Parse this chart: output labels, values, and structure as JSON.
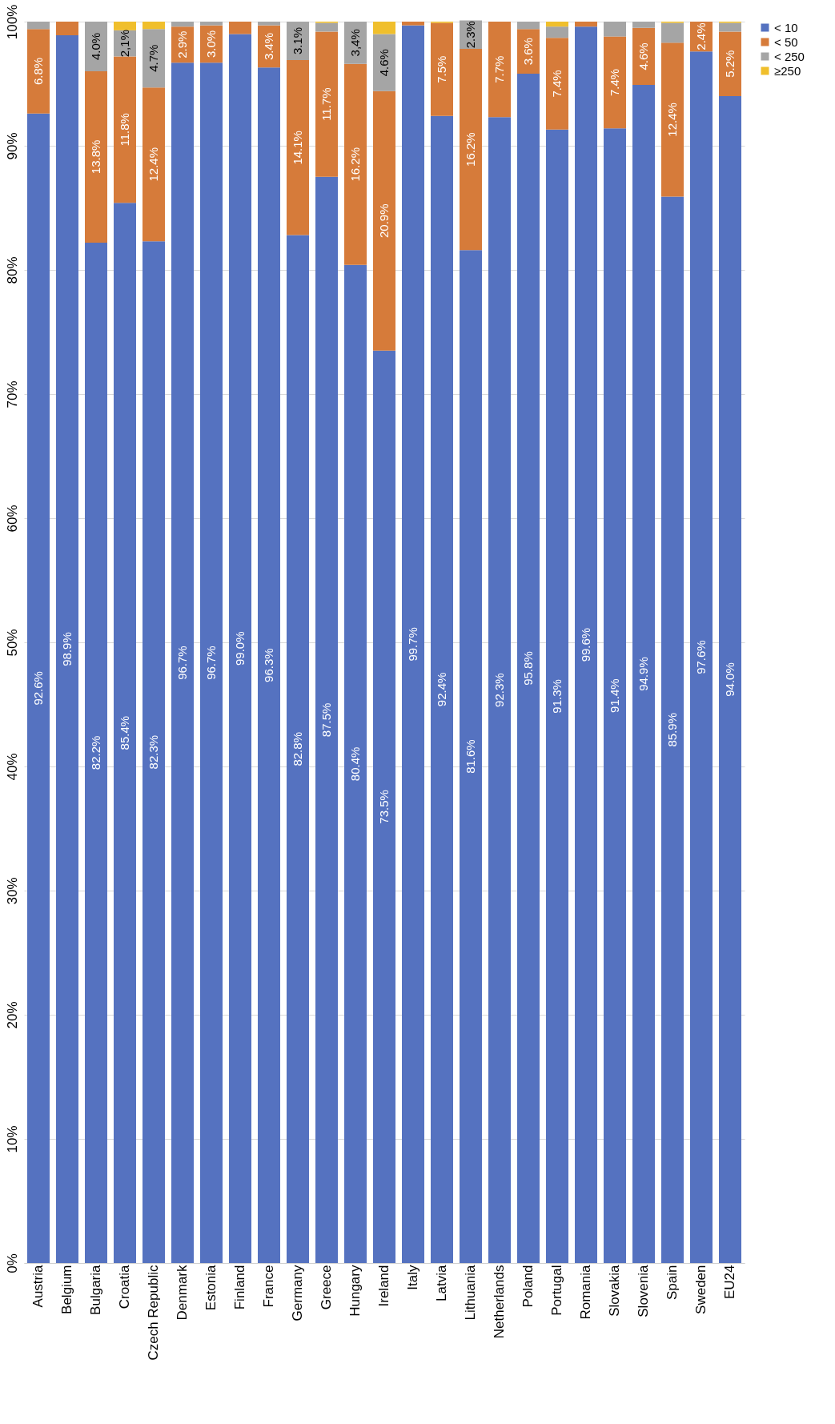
{
  "chart_data": {
    "type": "bar",
    "stacked": true,
    "categories": [
      "Austria",
      "Belgium",
      "Bulgaria",
      "Croatia",
      "Czech Republic",
      "Denmark",
      "Estonia",
      "Finland",
      "France",
      "Germany",
      "Greece",
      "Hungary",
      "Ireland",
      "Italy",
      "Latvia",
      "Lithuania",
      "Netherlands",
      "Poland",
      "Portugal",
      "Romania",
      "Slovakia",
      "Slovenia",
      "Spain",
      "Sweden",
      "EU24"
    ],
    "series": [
      {
        "name": "< 10",
        "color": "#5572c0",
        "values": [
          92.6,
          98.9,
          82.2,
          85.4,
          82.3,
          96.7,
          96.7,
          99.0,
          96.3,
          82.8,
          87.5,
          80.4,
          73.5,
          99.7,
          92.4,
          81.6,
          92.3,
          95.8,
          91.3,
          99.6,
          91.4,
          94.9,
          85.9,
          97.6,
          94.0
        ],
        "value_labels": [
          "92.6%",
          "98.9%",
          "82.2%",
          "85.4%",
          "82.3%",
          "96.7%",
          "96.7%",
          "99.0%",
          "96.3%",
          "82.8%",
          "87.5%",
          "80.4%",
          "73.5%",
          "99.7%",
          "92.4%",
          "81.6%",
          "92.3%",
          "95.8%",
          "91.3%",
          "99.6%",
          "91.4%",
          "94.9%",
          "85.9%",
          "97.6%",
          "94.0%"
        ]
      },
      {
        "name": "< 50",
        "color": "#d67b3a",
        "values": [
          6.8,
          1.1,
          13.8,
          11.8,
          12.4,
          2.9,
          3.0,
          1.0,
          3.4,
          14.1,
          11.7,
          16.2,
          20.9,
          0.3,
          7.5,
          16.2,
          7.7,
          3.6,
          7.4,
          0.4,
          7.4,
          4.6,
          12.4,
          2.4,
          5.2
        ],
        "value_labels": [
          "6.8%",
          null,
          "13.8%",
          "11.8%",
          "12.4%",
          "2.9%",
          "3.0%",
          null,
          "3.4%",
          "14.1%",
          "11.7%",
          "16.2%",
          "20.9%",
          null,
          "7.5%",
          "16.2%",
          "7.7%",
          "3.6%",
          "7.4%",
          null,
          "7.4%",
          "4.6%",
          "12.4%",
          "2.4%",
          "5.2%"
        ]
      },
      {
        "name": "< 250",
        "color": "#a5a5a5",
        "values": [
          0.6,
          0,
          4.0,
          2.1,
          4.7,
          0.4,
          0.3,
          0,
          0.3,
          3.1,
          0.7,
          3.4,
          4.6,
          0,
          0,
          2.3,
          0,
          0.6,
          0.9,
          0,
          1.2,
          0.5,
          1.6,
          0,
          0.7
        ],
        "value_labels": [
          null,
          null,
          "4.0%",
          "2,1%",
          "4.7%",
          null,
          null,
          null,
          null,
          "3.1%",
          null,
          "3,4%",
          "4.6%",
          null,
          null,
          "2.3%",
          null,
          null,
          null,
          null,
          null,
          null,
          null,
          null,
          null
        ]
      },
      {
        "name": "≥250",
        "color": "#f0bf2c",
        "values": [
          0,
          0,
          0,
          0.7,
          0.6,
          0,
          0,
          0,
          0,
          0,
          0.1,
          0,
          1.0,
          0,
          0.1,
          0,
          0,
          0,
          0.4,
          0,
          0,
          0,
          0.1,
          0,
          0.1
        ]
      }
    ],
    "ylim": [
      0,
      100
    ],
    "yticks": [
      {
        "value": 0,
        "label": "0%"
      },
      {
        "value": 10,
        "label": "10%"
      },
      {
        "value": 20,
        "label": "20%"
      },
      {
        "value": 30,
        "label": "30%"
      },
      {
        "value": 40,
        "label": "40%"
      },
      {
        "value": 50,
        "label": "50%"
      },
      {
        "value": 60,
        "label": "60%"
      },
      {
        "value": 70,
        "label": "70%"
      },
      {
        "value": 80,
        "label": "80%"
      },
      {
        "value": 90,
        "label": "90%"
      },
      {
        "value": 100,
        "label": "100%"
      }
    ],
    "grid": "y",
    "legend": "right"
  }
}
